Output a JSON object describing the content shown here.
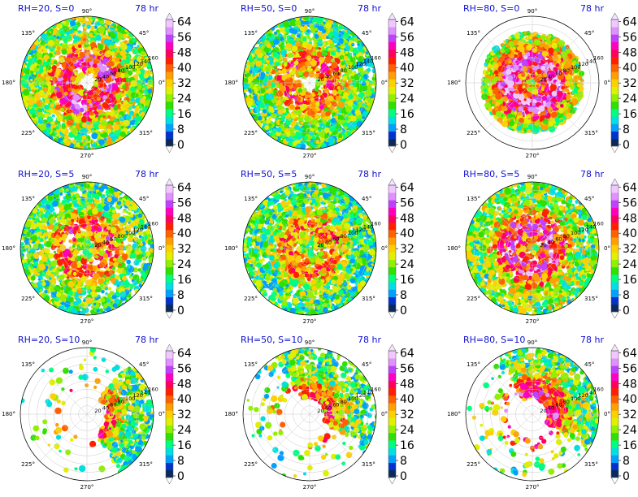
{
  "chart_data": {
    "type": "heatmap",
    "grid": {
      "rows": 3,
      "cols": 3
    },
    "time_label": "78 hr",
    "angular_ticks": [
      "90°",
      "45°",
      "0°",
      "315°",
      "270°",
      "225°",
      "180°",
      "135°"
    ],
    "radial_ticks": [
      "20",
      "40",
      "60",
      "80",
      "100",
      "120",
      "140",
      "160"
    ],
    "colorbar": {
      "ticks": [
        "0",
        "8",
        "16",
        "24",
        "32",
        "40",
        "48",
        "56",
        "64"
      ],
      "colors": [
        "#0a2a5a",
        "#0033cc",
        "#00a0ff",
        "#00e0e0",
        "#00ff80",
        "#30e000",
        "#90f000",
        "#e0f000",
        "#ffd000",
        "#ffa000",
        "#ff6000",
        "#ff2000",
        "#ff0060",
        "#ff00c0",
        "#c040ff",
        "#e090ff",
        "#f0c8ff"
      ]
    },
    "panels": [
      {
        "title": "RH=20, S=0",
        "coverage": 0.9,
        "intensity": 0.75,
        "center_clear": true,
        "spread": "full"
      },
      {
        "title": "RH=50, S=0",
        "coverage": 0.9,
        "intensity": 0.6,
        "center_clear": true,
        "spread": "full"
      },
      {
        "title": "RH=80, S=0",
        "coverage": 0.65,
        "intensity": 0.85,
        "center_clear": false,
        "spread": "inner"
      },
      {
        "title": "RH=20, S=5",
        "coverage": 0.7,
        "intensity": 0.6,
        "center_clear": false,
        "spread": "full"
      },
      {
        "title": "RH=50, S=5",
        "coverage": 0.85,
        "intensity": 0.55,
        "center_clear": false,
        "spread": "full"
      },
      {
        "title": "RH=80, S=5",
        "coverage": 0.8,
        "intensity": 0.75,
        "center_clear": false,
        "spread": "full"
      },
      {
        "title": "RH=20, S=10",
        "coverage": 0.25,
        "intensity": 0.55,
        "center_clear": false,
        "spread": "east"
      },
      {
        "title": "RH=50, S=10",
        "coverage": 0.3,
        "intensity": 0.55,
        "center_clear": false,
        "spread": "northeast"
      },
      {
        "title": "RH=80, S=10",
        "coverage": 0.4,
        "intensity": 0.7,
        "center_clear": false,
        "spread": "northeast"
      }
    ]
  }
}
